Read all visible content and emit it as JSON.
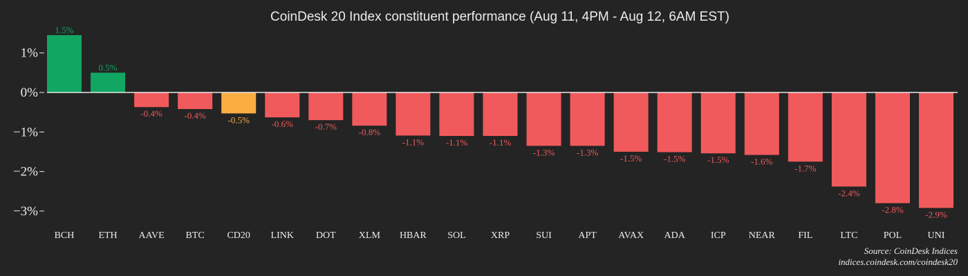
{
  "colors": {
    "background": "#242424",
    "positive": "#12a663",
    "negative": "#f05a5c",
    "index": "#fbad41",
    "text": "#ececec",
    "zero_line": "#e8e8e8"
  },
  "footer": {
    "source": "Source: CoinDesk Indices",
    "url": "indices.coindesk.com/coindesk20"
  },
  "chart_data": {
    "type": "bar",
    "title": "CoinDesk 20 Index constituent performance (Aug 11, 4PM - Aug 12, 6AM EST)",
    "xlabel": "",
    "ylabel": "",
    "unit": "%",
    "ylim": [
      -3.3,
      1.6
    ],
    "yticks": [
      1,
      0,
      -1,
      -2,
      -3
    ],
    "ytick_labels": [
      "1%",
      "0%",
      "−1%",
      "−2%",
      "−3%"
    ],
    "grid": false,
    "legend": "none",
    "categories": [
      "BCH",
      "ETH",
      "AAVE",
      "BTC",
      "CD20",
      "LINK",
      "DOT",
      "XLM",
      "HBAR",
      "SOL",
      "XRP",
      "SUI",
      "APT",
      "AVAX",
      "ADA",
      "ICP",
      "NEAR",
      "FIL",
      "LTC",
      "POL",
      "UNI"
    ],
    "values": [
      1.45,
      0.5,
      -0.37,
      -0.42,
      -0.53,
      -0.63,
      -0.7,
      -0.84,
      -1.09,
      -1.1,
      -1.1,
      -1.35,
      -1.35,
      -1.5,
      -1.51,
      -1.54,
      -1.58,
      -1.75,
      -2.38,
      -2.8,
      -2.92
    ],
    "data_labels": [
      "1.5%",
      "0.5%",
      "-0.4%",
      "-0.4%",
      "-0.5%",
      "-0.6%",
      "-0.7%",
      "-0.8%",
      "-1.1%",
      "-1.1%",
      "-1.1%",
      "-1.3%",
      "-1.3%",
      "-1.5%",
      "-1.5%",
      "-1.5%",
      "-1.6%",
      "-1.7%",
      "-2.4%",
      "-2.8%",
      "-2.9%"
    ],
    "highlight": "CD20"
  }
}
